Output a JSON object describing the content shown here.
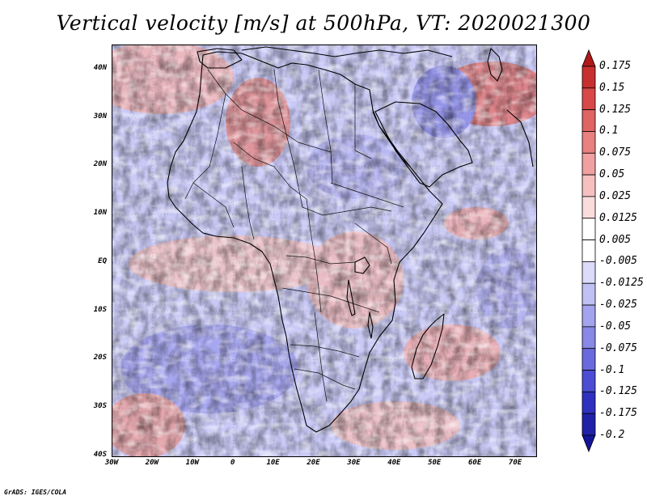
{
  "title": "Vertical velocity [m/s] at 500hPa, VT: 2020021300",
  "footer": "GrADS: IGES/COLA",
  "map": {
    "variable": "Vertical velocity",
    "units": "m/s",
    "level": "500hPa",
    "valid_time": "2020021300",
    "lon_range": [
      -30,
      75
    ],
    "lat_range": [
      -40,
      45
    ],
    "lat_labels": [
      "40N",
      "30N",
      "20N",
      "10N",
      "EQ",
      "10S",
      "20S",
      "30S",
      "40S"
    ],
    "lon_labels": [
      "30W",
      "20W",
      "10W",
      "0",
      "10E",
      "20E",
      "30E",
      "40E",
      "50E",
      "60E",
      "70E"
    ]
  },
  "colorbar": {
    "labels": [
      "0.175",
      "0.15",
      "0.125",
      "0.1",
      "0.075",
      "0.05",
      "0.025",
      "0.0125",
      "0.005",
      "-0.005",
      "-0.0125",
      "-0.025",
      "-0.05",
      "-0.075",
      "-0.1",
      "-0.125",
      "-0.175",
      "-0.2"
    ],
    "colors": [
      "#b01818",
      "#c83030",
      "#d84848",
      "#e06464",
      "#e88080",
      "#f0a0a0",
      "#f6c0c0",
      "#fadcdc",
      "#ffffff",
      "#ffffff",
      "#dcdcfa",
      "#c0c0f4",
      "#a4a4ee",
      "#8888e6",
      "#6a6ade",
      "#4c4cd4",
      "#3030c0",
      "#2020a8",
      "#14149a"
    ]
  }
}
